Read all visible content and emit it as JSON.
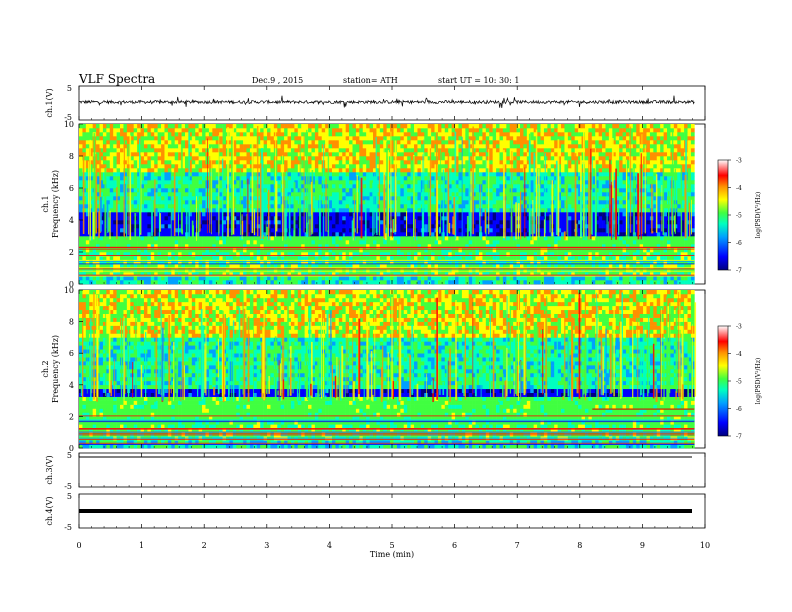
{
  "header": {
    "title": "VLF  Spectra",
    "date": "Dec.9  , 2015",
    "station": "station= ATH",
    "start": "start  UT  =    10: 30: 1"
  },
  "chart_data": [
    {
      "type": "line",
      "panel": "ch1-waveform",
      "ylabel": "ch.1(V)",
      "yticks": [
        "5",
        "-5"
      ],
      "ylim": [
        -5,
        5
      ],
      "xlim": [
        0,
        9.83
      ],
      "trace": "noisy waveform around 0.3 V with spikes to about ±1.5 V"
    },
    {
      "type": "heatmap",
      "panel": "ch1-spectrogram",
      "ylabel": "ch.1\nFrequency  (kHz)",
      "ylabel_line1": "ch.1",
      "ylabel_line2": "Frequency  (kHz)",
      "yticks": [
        "0",
        "2",
        "4",
        "6",
        "8",
        "10"
      ],
      "ylim": [
        0,
        10
      ],
      "xlim": [
        0,
        9.83
      ],
      "colorbar": {
        "label": "log(PSD(V²/Hz)",
        "ticks": [
          "-3",
          "-4",
          "-5",
          "-6",
          "-7"
        ],
        "range": [
          -7,
          -3
        ],
        "colors": [
          "#000080",
          "#0000ff",
          "#00a0ff",
          "#00ffc0",
          "#40ff40",
          "#ffff00",
          "#ff9000",
          "#ff0000",
          "#ffffff"
        ]
      },
      "bands_khz": {
        "green_band": [
          1.9,
          3.0
        ],
        "dark_band": [
          3.0,
          4.6
        ],
        "sferics_to": 10
      }
    },
    {
      "type": "heatmap",
      "panel": "ch2-spectrogram",
      "ylabel_line1": "ch.2",
      "ylabel_line2": "Frequency  (kHz)",
      "yticks": [
        "0",
        "2",
        "4",
        "6",
        "8",
        "10"
      ],
      "ylim": [
        0,
        10
      ],
      "xlim": [
        0,
        9.83
      ],
      "colorbar": {
        "label": "log(PSD(V²/Hz)",
        "ticks": [
          "-3",
          "-4",
          "-5",
          "-6",
          "-7"
        ],
        "range": [
          -7,
          -3
        ]
      },
      "bands_khz": {
        "green_band": [
          1.6,
          3.2
        ],
        "dark_band": [
          3.2,
          3.8
        ],
        "red_line_start_min": 8.2,
        "red_line_khz": 2.5
      }
    },
    {
      "type": "line",
      "panel": "ch3-waveform",
      "ylabel": "ch.3(V)",
      "yticks": [
        "5",
        "-5"
      ],
      "ylim": [
        -5,
        5
      ],
      "xlim": [
        0,
        9.83
      ],
      "level": 0
    },
    {
      "type": "line",
      "panel": "ch4-waveform",
      "ylabel": "ch.4(V)",
      "yticks": [
        "5",
        "-5"
      ],
      "ylim": [
        -5,
        5
      ],
      "xlim": [
        0,
        9.83
      ],
      "level": -1
    }
  ],
  "xaxis": {
    "label": "Time  (min)",
    "ticks": [
      "0",
      "1",
      "2",
      "3",
      "4",
      "5",
      "6",
      "7",
      "8",
      "9",
      "10"
    ],
    "xlim": [
      0,
      10
    ]
  }
}
